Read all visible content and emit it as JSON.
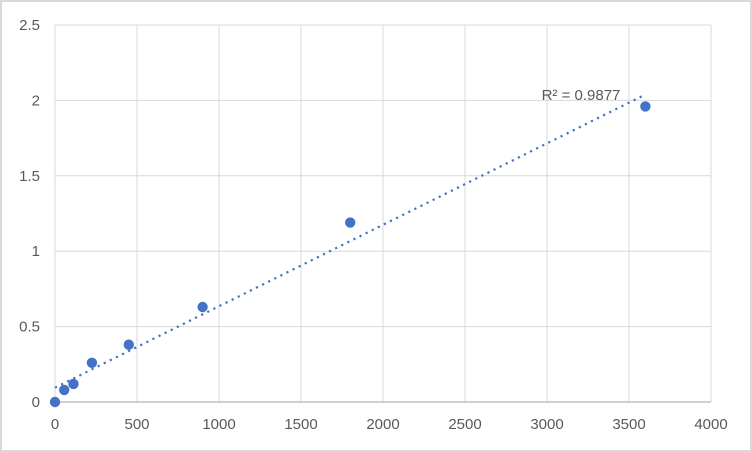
{
  "chart": {
    "colors": {
      "point": "#4472C4",
      "trendline": "#4472C4",
      "gridline": "#D9D9D9",
      "axis_line": "#BFBFBF",
      "tick_label": "#595959",
      "annotation_text": "#595959",
      "background": "#FFFFFF",
      "frame": "#D9D9D9"
    }
  },
  "chart_data": {
    "type": "scatter",
    "title": "",
    "xlabel": "",
    "ylabel": "",
    "xlim": [
      0,
      4000
    ],
    "ylim": [
      0,
      2.5
    ],
    "x_ticks": [
      0,
      500,
      1000,
      1500,
      2000,
      2500,
      3000,
      3500,
      4000
    ],
    "y_ticks": [
      0,
      0.5,
      1,
      1.5,
      2,
      2.5
    ],
    "grid": true,
    "legend": false,
    "points": [
      {
        "x": 0,
        "y": 0.0
      },
      {
        "x": 56.25,
        "y": 0.08
      },
      {
        "x": 112.5,
        "y": 0.12
      },
      {
        "x": 225,
        "y": 0.26
      },
      {
        "x": 450,
        "y": 0.38
      },
      {
        "x": 900,
        "y": 0.63
      },
      {
        "x": 1800,
        "y": 1.19
      },
      {
        "x": 3600,
        "y": 1.96
      }
    ],
    "trendline": {
      "type": "linear",
      "style": "dotted",
      "slope": 0.00054,
      "intercept": 0.095,
      "x_start": 0,
      "x_end": 3600,
      "r_squared": 0.9877
    },
    "annotation": "R² = 0.9877"
  }
}
